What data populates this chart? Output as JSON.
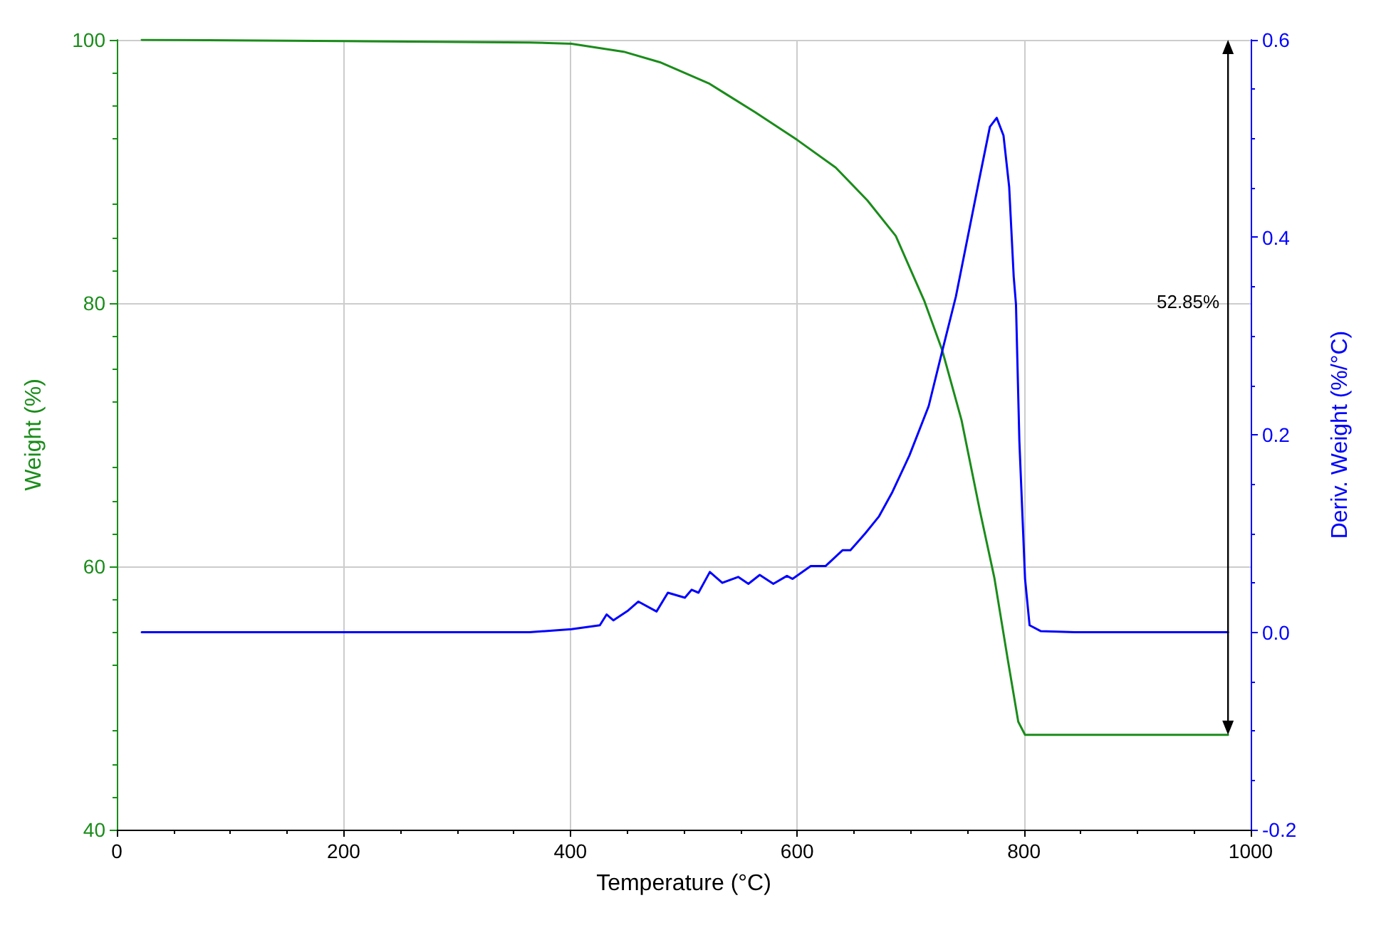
{
  "chart_data": {
    "type": "line",
    "xlabel": "Temperature (°C)",
    "ylabel": "Weight (%)",
    "y2label": "Deriv. Weight (%/°C)",
    "xlim": [
      0,
      1000
    ],
    "xticks": [
      0,
      200,
      400,
      600,
      800,
      1000
    ],
    "ylim": [
      40,
      100
    ],
    "yticks": [
      40,
      60,
      80,
      100
    ],
    "y2lim": [
      -0.2,
      0.6
    ],
    "y2ticks": [
      -0.2,
      {
        "value": 0,
        "label": "0.0"
      },
      0.2,
      0.4,
      0.6
    ],
    "grid": true,
    "marker": "none",
    "line_style": "solid",
    "series": [
      {
        "color": "#1a8c1a",
        "x": [
          22,
          200,
          364,
          401,
          447,
          479,
          522,
          563,
          600,
          634,
          662,
          687,
          712,
          728,
          745,
          761,
          774,
          786,
          795,
          801,
          850,
          980
        ],
        "values": [
          100,
          99.9,
          99.8,
          99.7,
          99.1,
          98.3,
          96.7,
          94.5,
          92.4,
          90.3,
          87.8,
          85.1,
          80.2,
          76.4,
          71.1,
          64.3,
          59.1,
          52.8,
          48.2,
          47.2,
          47.2,
          47.2
        ]
      },
      {
        "color": "#0000ff",
        "axis": "y2",
        "x": [
          22,
          200,
          364,
          401,
          426,
          432,
          438,
          451,
          460,
          476,
          486,
          501,
          507,
          513,
          523,
          534,
          548,
          557,
          567,
          579,
          591,
          596,
          612,
          625,
          640,
          647,
          660,
          672,
          684,
          699,
          716,
          728,
          740,
          761,
          770,
          776,
          782,
          787,
          791,
          793,
          796,
          801,
          805,
          815,
          845,
          980
        ],
        "values": [
          0,
          0,
          0,
          0.003,
          0.007,
          0.018,
          0.012,
          0.022,
          0.031,
          0.021,
          0.04,
          0.035,
          0.043,
          0.04,
          0.061,
          0.05,
          0.056,
          0.049,
          0.058,
          0.049,
          0.057,
          0.054,
          0.067,
          0.067,
          0.083,
          0.083,
          0.1,
          0.117,
          0.142,
          0.179,
          0.229,
          0.285,
          0.34,
          0.461,
          0.512,
          0.521,
          0.503,
          0.451,
          0.36,
          0.332,
          0.193,
          0.054,
          0.007,
          0.001,
          0,
          0
        ]
      }
    ],
    "annotations": [
      "52.85%"
    ]
  }
}
